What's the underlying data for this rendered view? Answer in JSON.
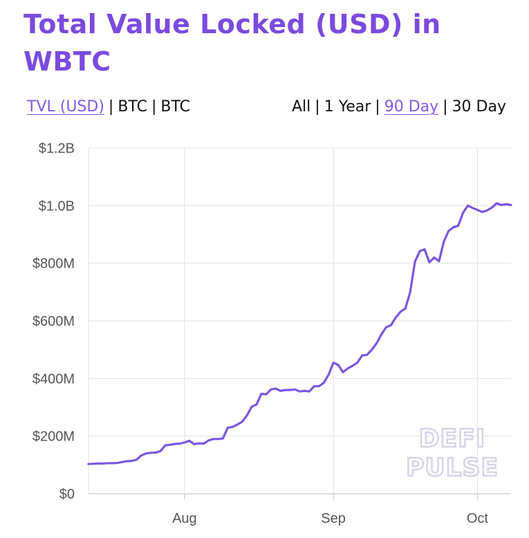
{
  "header": {
    "title": "Total Value Locked (USD) in WBTC"
  },
  "metric_toggle": {
    "options": [
      "TVL (USD)",
      "BTC",
      "BTC"
    ],
    "active": "TVL (USD)"
  },
  "range_toggle": {
    "options": [
      "All",
      "1 Year",
      "90 Day",
      "30 Day"
    ],
    "active": "90 Day"
  },
  "watermark": [
    "DEFI",
    "PULSE"
  ],
  "colors": {
    "accent": "#7b4ae0",
    "line": "#7c55e4",
    "grid": "#e2e2e2"
  },
  "chart_data": {
    "type": "line",
    "title": "Total Value Locked (USD) in WBTC",
    "xlabel": "",
    "ylabel": "",
    "x_ticks": [
      {
        "label": "Aug",
        "date": "2020-08-01"
      },
      {
        "label": "Sep",
        "date": "2020-09-01"
      },
      {
        "label": "Oct",
        "date": "2020-10-01"
      }
    ],
    "y_ticks": [
      "$0",
      "$200M",
      "$400M",
      "$600M",
      "$800M",
      "$1.0B",
      "$1.2B"
    ],
    "ylim": [
      0,
      1200000000
    ],
    "xlim": [
      "2020-07-12",
      "2020-10-08"
    ],
    "grid": true,
    "legend": "none",
    "series": [
      {
        "x": [
          "2020-07-12",
          "2020-07-13",
          "2020-07-14",
          "2020-07-15",
          "2020-07-16",
          "2020-07-17",
          "2020-07-18",
          "2020-07-19",
          "2020-07-20",
          "2020-07-21",
          "2020-07-22",
          "2020-07-23",
          "2020-07-24",
          "2020-07-25",
          "2020-07-26",
          "2020-07-27",
          "2020-07-28",
          "2020-07-29",
          "2020-07-30",
          "2020-07-31",
          "2020-08-01",
          "2020-08-02",
          "2020-08-03",
          "2020-08-04",
          "2020-08-05",
          "2020-08-06",
          "2020-08-07",
          "2020-08-08",
          "2020-08-09",
          "2020-08-10",
          "2020-08-11",
          "2020-08-12",
          "2020-08-13",
          "2020-08-14",
          "2020-08-15",
          "2020-08-16",
          "2020-08-17",
          "2020-08-18",
          "2020-08-19",
          "2020-08-20",
          "2020-08-21",
          "2020-08-22",
          "2020-08-23",
          "2020-08-24",
          "2020-08-25",
          "2020-08-26",
          "2020-08-27",
          "2020-08-28",
          "2020-08-29",
          "2020-08-30",
          "2020-08-31",
          "2020-09-01",
          "2020-09-02",
          "2020-09-03",
          "2020-09-04",
          "2020-09-05",
          "2020-09-06",
          "2020-09-07",
          "2020-09-08",
          "2020-09-09",
          "2020-09-10",
          "2020-09-11",
          "2020-09-12",
          "2020-09-13",
          "2020-09-14",
          "2020-09-15",
          "2020-09-16",
          "2020-09-17",
          "2020-09-18",
          "2020-09-19",
          "2020-09-20",
          "2020-09-21",
          "2020-09-22",
          "2020-09-23",
          "2020-09-24",
          "2020-09-25",
          "2020-09-26",
          "2020-09-27",
          "2020-09-28",
          "2020-09-29",
          "2020-09-30",
          "2020-10-01",
          "2020-10-02",
          "2020-10-03",
          "2020-10-04",
          "2020-10-05",
          "2020-10-06",
          "2020-10-07",
          "2020-10-08"
        ],
        "y": [
          103000000,
          104000000,
          105000000,
          105000000,
          106000000,
          106000000,
          107000000,
          110000000,
          113000000,
          114000000,
          118000000,
          133000000,
          140000000,
          142000000,
          143000000,
          148000000,
          168000000,
          170000000,
          173000000,
          174000000,
          178000000,
          184000000,
          172000000,
          175000000,
          174000000,
          185000000,
          190000000,
          190000000,
          192000000,
          229000000,
          232000000,
          240000000,
          250000000,
          272000000,
          302000000,
          310000000,
          347000000,
          345000000,
          362000000,
          365000000,
          357000000,
          360000000,
          360000000,
          362000000,
          355000000,
          357000000,
          355000000,
          373000000,
          373000000,
          385000000,
          413000000,
          455000000,
          447000000,
          422000000,
          435000000,
          444000000,
          455000000,
          480000000,
          482000000,
          500000000,
          522000000,
          553000000,
          578000000,
          585000000,
          612000000,
          632000000,
          643000000,
          700000000,
          806000000,
          842000000,
          848000000,
          803000000,
          820000000,
          807000000,
          875000000,
          912000000,
          925000000,
          930000000,
          975000000,
          1000000000,
          992000000,
          985000000,
          978000000,
          983000000,
          993000000,
          1008000000,
          1002000000,
          1005000000,
          1002000000
        ]
      }
    ]
  }
}
